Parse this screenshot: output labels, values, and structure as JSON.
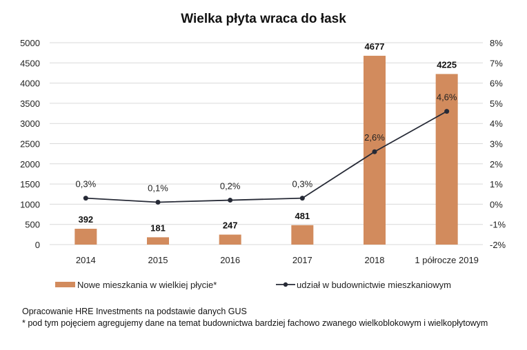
{
  "chart_data": {
    "type": "bar+line",
    "title": "Wielka płyta wraca do łask",
    "categories": [
      "2014",
      "2015",
      "2016",
      "2017",
      "2018",
      "1 półrocze 2019"
    ],
    "series": [
      {
        "name": "Nowe mieszkania w wielkiej płycie*",
        "type": "bar",
        "axis": "left",
        "values": [
          392,
          181,
          247,
          481,
          4677,
          4225
        ],
        "labels": [
          "392",
          "181",
          "247",
          "481",
          "4677",
          "4225"
        ],
        "color": "#D28B5D"
      },
      {
        "name": "udział w budownictwie mieszkaniowym",
        "type": "line",
        "axis": "right",
        "values": [
          0.3,
          0.1,
          0.2,
          0.3,
          2.6,
          4.6
        ],
        "labels": [
          "0,3%",
          "0,1%",
          "0,2%",
          "0,3%",
          "2,6%",
          "4,6%"
        ],
        "color": "#262a36"
      }
    ],
    "y_left": {
      "range": [
        0,
        5000
      ],
      "ticks": [
        "0",
        "500",
        "1000",
        "1500",
        "2000",
        "2500",
        "3000",
        "3500",
        "4000",
        "4500",
        "5000"
      ]
    },
    "y_right": {
      "range": [
        -2,
        8
      ],
      "ticks": [
        "-2%",
        "-1%",
        "0%",
        "1%",
        "2%",
        "3%",
        "4%",
        "5%",
        "6%",
        "7%",
        "8%"
      ]
    },
    "grid": true,
    "legend_position": "bottom"
  },
  "footer": {
    "source": "Opracowanie HRE Investments na podstawie danych GUS",
    "note": "* pod tym pojęciem agregujemy dane na temat budownictwa bardziej fachowo zwanego wielkoblokowym i wielkopłytowym"
  }
}
